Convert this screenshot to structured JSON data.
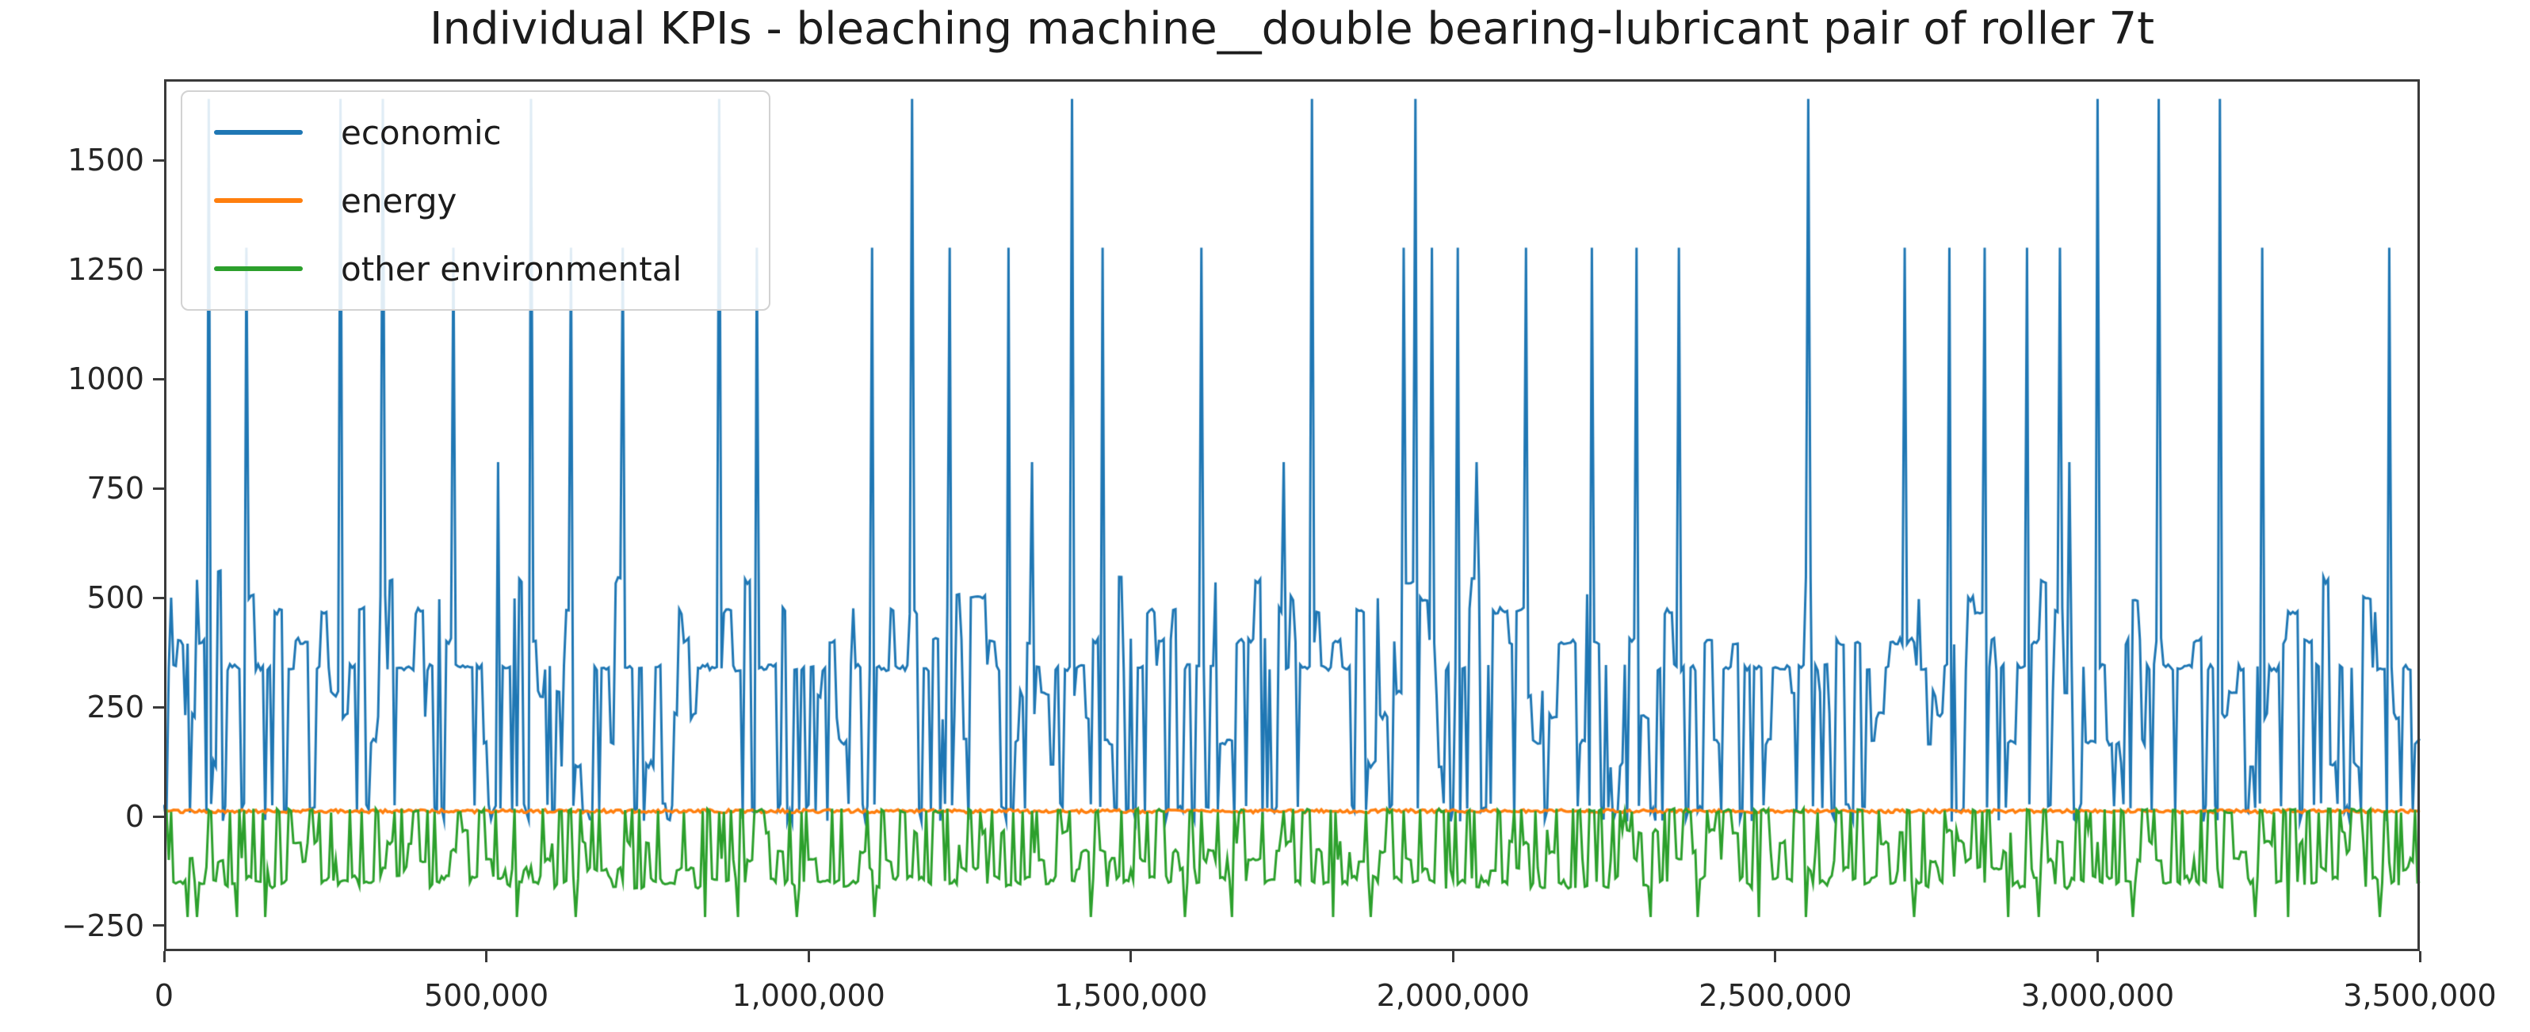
{
  "chart_data": {
    "type": "line",
    "title": "Individual KPIs - bleaching machine__double bearing-lubricant pair of roller 7t",
    "xlabel": "",
    "ylabel": "",
    "xlim": [
      0,
      3500000
    ],
    "ylim": [
      -308,
      1685
    ],
    "grid": false,
    "legend": {
      "position": "upper left",
      "entries": [
        "economic",
        "energy",
        "other environmental"
      ]
    },
    "x_axis": {
      "tick_values": [
        0,
        500000,
        1000000,
        1500000,
        2000000,
        2500000,
        3000000,
        3500000
      ],
      "tick_labels": [
        "0",
        "500,000",
        "1,000,000",
        "1,500,000",
        "2,000,000",
        "2,500,000",
        "3,000,000",
        "3,500,000"
      ]
    },
    "y_axis": {
      "tick_values": [
        -250,
        0,
        250,
        500,
        750,
        1000,
        1250,
        1500
      ],
      "tick_labels": [
        "−250",
        "0",
        "250",
        "500",
        "750",
        "1000",
        "1250",
        "1500"
      ]
    },
    "series": [
      {
        "name": "economic",
        "color": "#1f77b4",
        "description": "dense oscillation between a ~0..30 baseline and peaks of 120-560 (most commonly ~340), with occasional small negatives ~-10 and isolated tall spikes",
        "baseline_range": [
          -10,
          30
        ],
        "typical_peak_levels": [
          120,
          170,
          230,
          280,
          340,
          400,
          470,
          500,
          540,
          560
        ],
        "major_spikes": [
          [
            10000,
            500
          ],
          [
            70000,
            1640
          ],
          [
            272000,
            1640
          ],
          [
            340000,
            1640
          ],
          [
            570000,
            1640
          ],
          [
            860000,
            1640
          ],
          [
            1160000,
            1640
          ],
          [
            1410000,
            1640
          ],
          [
            1780000,
            1640
          ],
          [
            1940000,
            1640
          ],
          [
            2550000,
            1640
          ],
          [
            3000000,
            1640
          ],
          [
            3095000,
            1640
          ],
          [
            3190000,
            1640
          ],
          [
            128000,
            1300
          ],
          [
            450000,
            1300
          ],
          [
            633000,
            1300
          ],
          [
            710000,
            1300
          ],
          [
            920000,
            1300
          ],
          [
            1100000,
            1300
          ],
          [
            1220000,
            1300
          ],
          [
            1310000,
            1300
          ],
          [
            1455000,
            1300
          ],
          [
            1610000,
            1300
          ],
          [
            1923000,
            1300
          ],
          [
            1968000,
            1300
          ],
          [
            2007000,
            1300
          ],
          [
            2112000,
            1300
          ],
          [
            2214000,
            1300
          ],
          [
            2283000,
            1300
          ],
          [
            2351000,
            1300
          ],
          [
            2701000,
            1300
          ],
          [
            2770000,
            1300
          ],
          [
            2823000,
            1300
          ],
          [
            2891000,
            1300
          ],
          [
            2940000,
            1300
          ],
          [
            3256000,
            1300
          ],
          [
            3451000,
            1300
          ],
          [
            518000,
            810
          ],
          [
            1346000,
            810
          ],
          [
            1739000,
            810
          ],
          [
            2035000,
            810
          ],
          [
            2957000,
            810
          ]
        ]
      },
      {
        "name": "energy",
        "color": "#ff7f0e",
        "description": "nearly constant small positive values forming a thin band just above zero",
        "value_range": [
          8,
          16
        ]
      },
      {
        "name": "other environmental",
        "color": "#2ca02c",
        "description": "dense oscillation between a ~+8..+18 baseline and dips of -35..-160 (ragged bottom ~-150), with occasional deep dips to -230",
        "baseline_range": [
          8,
          18
        ],
        "typical_dip_levels": [
          -35,
          -60,
          -80,
          -100,
          -120,
          -140,
          -150,
          -160
        ],
        "deep_dips_value": -230,
        "deep_dips_x": [
          35000,
          52000,
          113000,
          157000,
          547000,
          639000,
          841000,
          889000,
          981000,
          1101000,
          1439000,
          1583000,
          1656000,
          1813000,
          1872000,
          2306000,
          2378000,
          2475000,
          2547000,
          2716000,
          2860000,
          2909000,
          3053000,
          3246000,
          3294000,
          3439000
        ]
      }
    ],
    "resolution": {
      "n_points": 960,
      "seed": 42
    }
  }
}
